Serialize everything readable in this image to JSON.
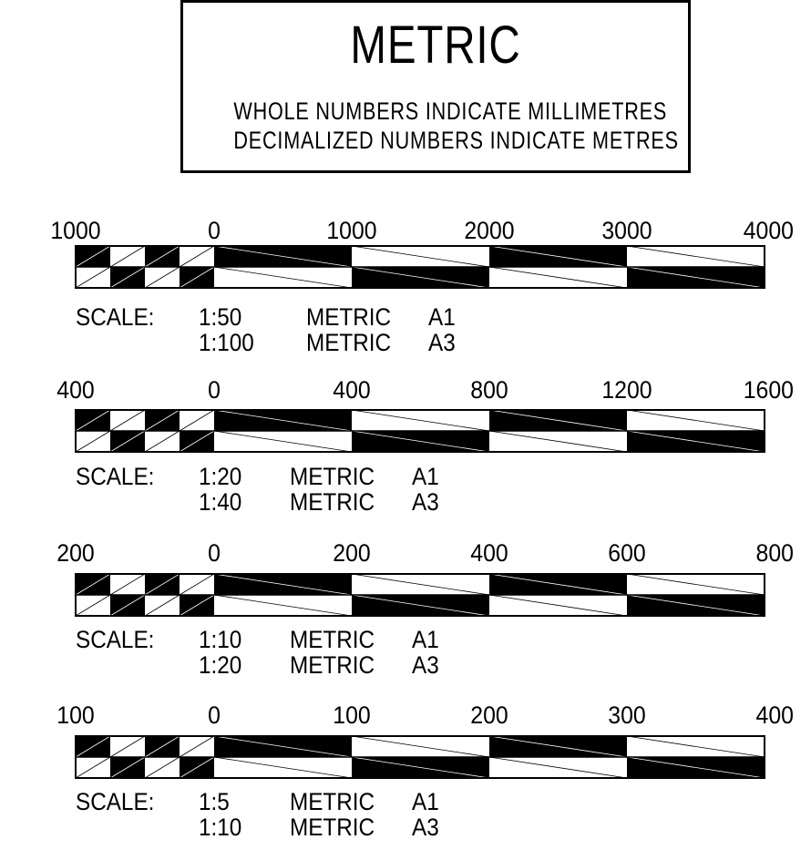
{
  "header": {
    "title": "METRIC",
    "line1": "WHOLE NUMBERS INDICATE MILLIMETRES",
    "line2": "DECIMALIZED NUMBERS INDICATE METRES"
  },
  "scales": [
    {
      "tick_labels": [
        "1000",
        "0",
        "1000",
        "2000",
        "3000",
        "4000"
      ],
      "scale_label": "SCALE:",
      "rows": [
        {
          "ratio": "1:50",
          "system": "METRIC",
          "sheet": "A1"
        },
        {
          "ratio": "1:100",
          "system": "METRIC",
          "sheet": "A3"
        }
      ]
    },
    {
      "tick_labels": [
        "400",
        "0",
        "400",
        "800",
        "1200",
        "1600"
      ],
      "scale_label": "SCALE:",
      "rows": [
        {
          "ratio": "1:20",
          "system": "METRIC",
          "sheet": "A1"
        },
        {
          "ratio": "1:40",
          "system": "METRIC",
          "sheet": "A3"
        }
      ]
    },
    {
      "tick_labels": [
        "200",
        "0",
        "200",
        "400",
        "600",
        "800"
      ],
      "scale_label": "SCALE:",
      "rows": [
        {
          "ratio": "1:10",
          "system": "METRIC",
          "sheet": "A1"
        },
        {
          "ratio": "1:20",
          "system": "METRIC",
          "sheet": "A3"
        }
      ]
    },
    {
      "tick_labels": [
        "100",
        "0",
        "100",
        "200",
        "300",
        "400"
      ],
      "scale_label": "SCALE:",
      "rows": [
        {
          "ratio": "1:5",
          "system": "METRIC",
          "sheet": "A1"
        },
        {
          "ratio": "1:10",
          "system": "METRIC",
          "sheet": "A3"
        }
      ]
    }
  ]
}
